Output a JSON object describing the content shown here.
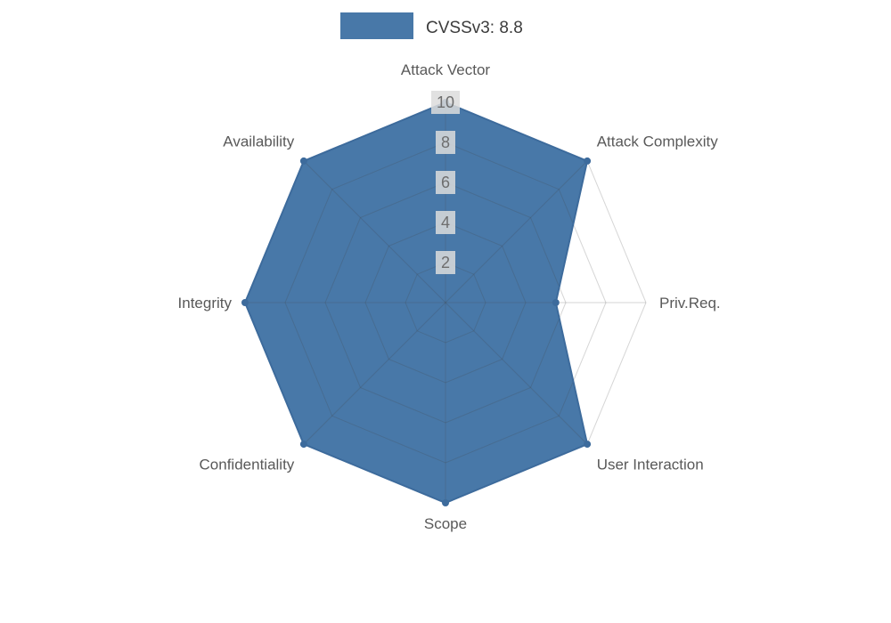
{
  "chart_data": {
    "type": "radar",
    "title": "CVSSv3: 8.8",
    "legend": {
      "label": "CVSSv3: 8.8",
      "position": "top",
      "swatch_color": "#4878a8"
    },
    "categories": [
      "Attack Vector",
      "Attack Complexity",
      "Priv.Req.",
      "User Interaction",
      "Scope",
      "Confidentiality",
      "Integrity",
      "Availability"
    ],
    "series": [
      {
        "name": "CVSSv3: 8.8",
        "values": [
          10,
          10,
          5.5,
          10,
          10,
          10,
          10,
          10
        ]
      }
    ],
    "ticks": [
      2,
      4,
      6,
      8,
      10
    ],
    "rlim": [
      0,
      10
    ],
    "grid": true,
    "colors": {
      "fill": "#4878a8",
      "outline": "#3d6b9c",
      "vertex": "#3d6b9c",
      "grid_line": "#cccccc",
      "axis_text": "#595959",
      "tick_text": "#6e6e6e",
      "tick_box": "#dcdcdc",
      "legend_text": "#3c3c3c"
    }
  }
}
